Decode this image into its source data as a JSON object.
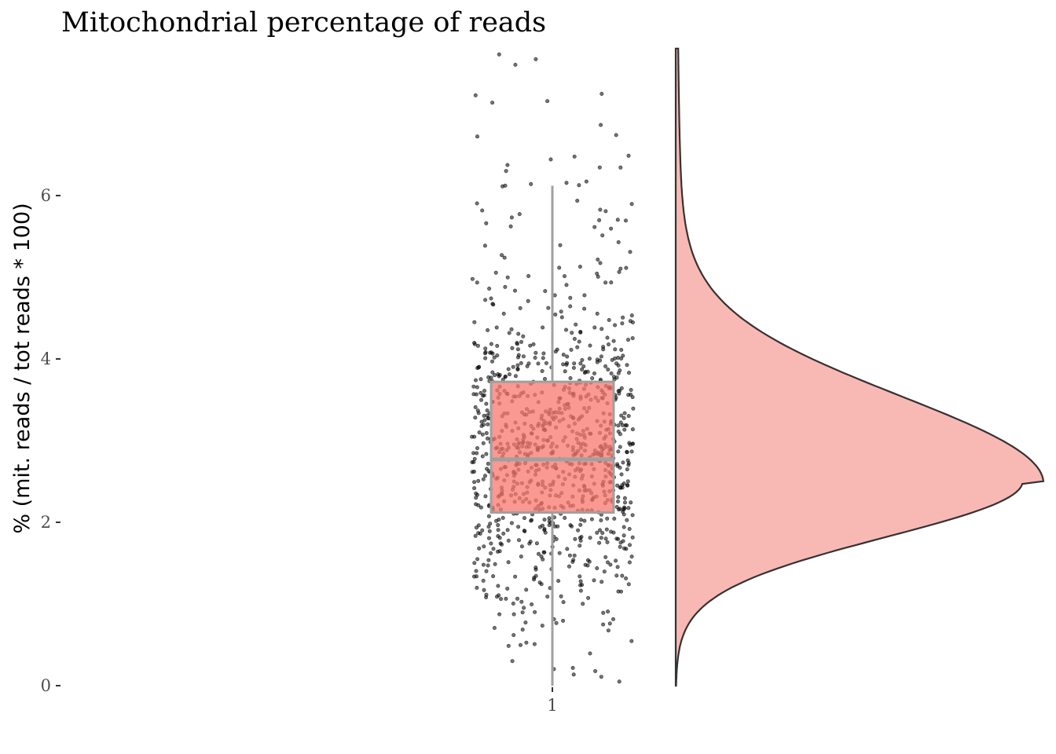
{
  "chart_data": {
    "type": "raincloud",
    "title": "Mitochondrial percentage of reads",
    "xlabel": "",
    "ylabel": "% (mit. reads / tot reads * 100)",
    "categories": [
      "1"
    ],
    "ylim": [
      0,
      7.8
    ],
    "yticks": [
      0,
      2,
      4,
      6
    ],
    "grid": false,
    "legend": "none",
    "boxplot": {
      "category": "1",
      "whisker_low": 0,
      "q1": 2.12,
      "median": 2.77,
      "q3": 3.72,
      "whisker_high": 6.12
    },
    "density": {
      "mode": 2.5,
      "min": 0,
      "max": 7.8
    },
    "points": {
      "count": 1000,
      "distribution": "right-skewed, centered near 2.5-3, outliers up to ~7.8"
    },
    "colors": {
      "box_fill": "#f8766d",
      "box_border": "#a0a0a0",
      "density_fill": "#f8b9b5",
      "density_line": "#333333",
      "points": "#000000"
    }
  }
}
